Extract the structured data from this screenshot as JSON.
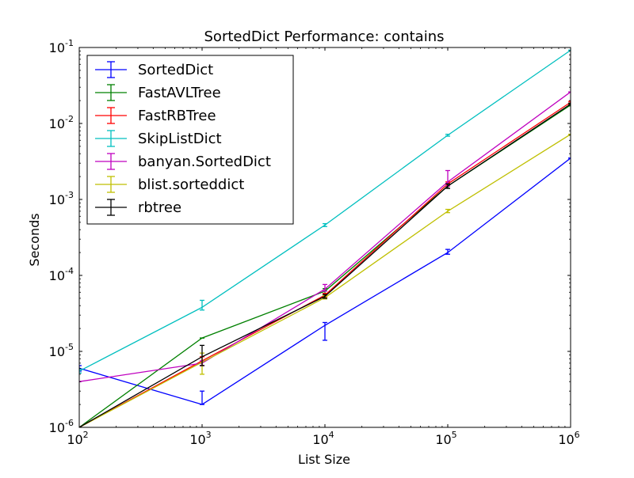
{
  "chart_data": {
    "type": "line",
    "title": "SortedDict Performance: contains",
    "xlabel": "List Size",
    "ylabel": "Seconds",
    "xscale": "log",
    "yscale": "log",
    "xlim": [
      100,
      1000000
    ],
    "ylim": [
      1e-06,
      0.1
    ],
    "grid": false,
    "legend_position": "top-left",
    "x_ticks": [
      {
        "value": 100,
        "base": "10",
        "exp": "2"
      },
      {
        "value": 1000,
        "base": "10",
        "exp": "3"
      },
      {
        "value": 10000,
        "base": "10",
        "exp": "4"
      },
      {
        "value": 100000,
        "base": "10",
        "exp": "5"
      },
      {
        "value": 1000000,
        "base": "10",
        "exp": "6"
      }
    ],
    "y_ticks": [
      {
        "value": 1e-06,
        "base": "10",
        "exp": "-6"
      },
      {
        "value": 1e-05,
        "base": "10",
        "exp": "-5"
      },
      {
        "value": 0.0001,
        "base": "10",
        "exp": "-4"
      },
      {
        "value": 0.001,
        "base": "10",
        "exp": "-3"
      },
      {
        "value": 0.01,
        "base": "10",
        "exp": "-2"
      },
      {
        "value": 0.1,
        "base": "10",
        "exp": "-1"
      }
    ],
    "x": [
      100,
      1000,
      10000,
      100000,
      1000000
    ],
    "series": [
      {
        "name": "SortedDict",
        "color": "#0000ff",
        "values": [
          6e-06,
          2e-06,
          2.2e-05,
          0.0002,
          0.0035
        ],
        "err_low": [
          5.5e-06,
          2e-06,
          1.4e-05,
          0.00019,
          0.0035
        ],
        "err_high": [
          6.5e-06,
          3e-06,
          2.4e-05,
          0.00022,
          0.0035
        ]
      },
      {
        "name": "FastAVLTree",
        "color": "#008000",
        "values": [
          1e-06,
          1.5e-05,
          6.2e-05,
          0.0015,
          0.0175
        ],
        "err_low": [
          1e-06,
          1.5e-05,
          5.7e-05,
          0.0014,
          0.017
        ],
        "err_high": [
          1e-06,
          1.5e-05,
          6.7e-05,
          0.0016,
          0.018
        ]
      },
      {
        "name": "FastRBTree",
        "color": "#ff0000",
        "values": [
          1e-06,
          7.5e-06,
          5.5e-05,
          0.0016,
          0.019
        ],
        "err_low": [
          1e-06,
          6.5e-06,
          5.2e-05,
          0.0015,
          0.0185
        ],
        "err_high": [
          1e-06,
          8.5e-06,
          5.8e-05,
          0.0017,
          0.0195
        ]
      },
      {
        "name": "SkipListDict",
        "color": "#00bfbf",
        "values": [
          5.5e-06,
          3.8e-05,
          0.00046,
          0.007,
          0.092
        ],
        "err_low": [
          5.2e-06,
          3.5e-05,
          0.00044,
          0.0068,
          0.092
        ],
        "err_high": [
          5.8e-06,
          4.7e-05,
          0.00048,
          0.0072,
          0.092
        ]
      },
      {
        "name": "banyan.SortedDict",
        "color": "#bf00bf",
        "values": [
          4e-06,
          7e-06,
          6.6e-05,
          0.0017,
          0.026
        ],
        "err_low": [
          4e-06,
          6.5e-06,
          6.2e-05,
          0.0015,
          0.026
        ],
        "err_high": [
          4e-06,
          7.5e-06,
          7.6e-05,
          0.0024,
          0.026
        ]
      },
      {
        "name": "blist.sorteddict",
        "color": "#bfbf00",
        "values": [
          1e-06,
          7.2e-06,
          5.1e-05,
          0.0007,
          0.0072
        ],
        "err_low": [
          1e-06,
          5e-06,
          4.9e-05,
          0.00067,
          0.0072
        ],
        "err_high": [
          1e-06,
          9.5e-06,
          5.4e-05,
          0.00074,
          0.0072
        ]
      },
      {
        "name": "rbtree",
        "color": "#000000",
        "values": [
          1e-06,
          8.5e-06,
          5.3e-05,
          0.0015,
          0.018
        ],
        "err_low": [
          1e-06,
          6.5e-06,
          5e-05,
          0.0014,
          0.0175
        ],
        "err_high": [
          1e-06,
          1.2e-05,
          5.6e-05,
          0.0016,
          0.0185
        ]
      }
    ]
  }
}
